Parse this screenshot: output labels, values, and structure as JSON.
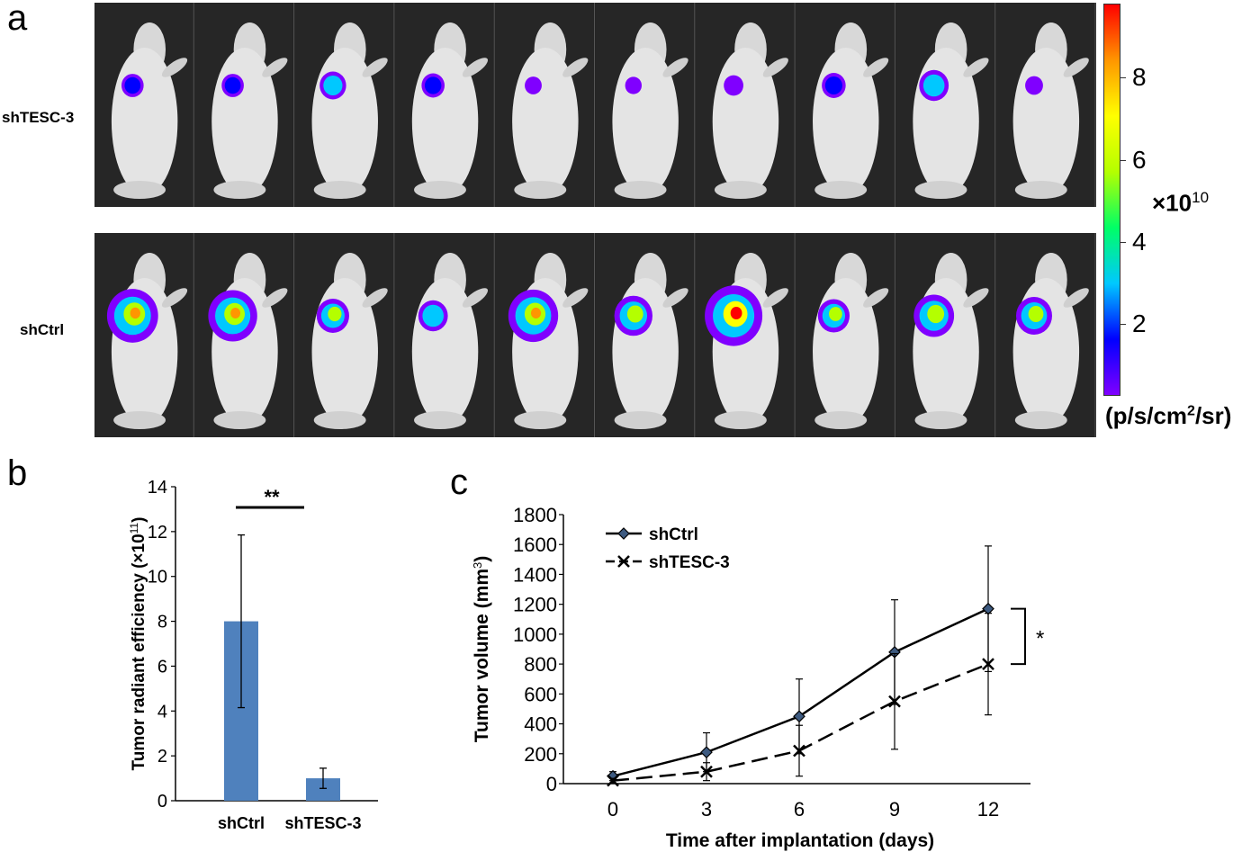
{
  "panel_a": {
    "letter": "a",
    "rows": [
      {
        "label": "shTESC-3",
        "signal": [
          0.18,
          0.18,
          0.28,
          0.2,
          0.06,
          0.05,
          0.12,
          0.22,
          0.35,
          0.08
        ]
      },
      {
        "label": "shCtrl",
        "signal": [
          0.85,
          0.8,
          0.42,
          0.35,
          0.82,
          0.55,
          1.0,
          0.4,
          0.6,
          0.5
        ]
      }
    ],
    "colorbar": {
      "ticks": [
        "2",
        "4",
        "6",
        "8"
      ],
      "tick_values": [
        2,
        4,
        6,
        8
      ],
      "min": 0.3,
      "max": 9.8,
      "exponent_base": "×10",
      "exponent_power": "10",
      "unit_prefix": "(p/s/cm",
      "unit_power": "2",
      "unit_suffix": "/sr)",
      "gradient": [
        "#8000ff",
        "#0000ff",
        "#00c8ff",
        "#00ff66",
        "#b4ff00",
        "#ffff00",
        "#ff9600",
        "#ff0000"
      ]
    }
  },
  "panel_b": {
    "letter": "b"
  },
  "panel_c": {
    "letter": "c"
  },
  "chart_data": [
    {
      "type": "bar",
      "ylabel_main": "Tumor radiant efficiency (×10",
      "ylabel_power": "11",
      "ylabel_end": ")",
      "categories": [
        "shCtrl",
        "shTESC-3"
      ],
      "values": [
        8.0,
        1.0
      ],
      "errors": [
        3.85,
        0.45
      ],
      "ylim": [
        0,
        14
      ],
      "yticks": [
        "0",
        "2",
        "4",
        "6",
        "8",
        "10",
        "12",
        "14"
      ],
      "significance": "**",
      "bar_color": "#4f81bd"
    },
    {
      "type": "line",
      "xlabel": "Time after implantation (days)",
      "ylabel_main": "Tumor volume (mm",
      "ylabel_power": "3",
      "ylabel_end": ")",
      "x": [
        0,
        3,
        6,
        9,
        12
      ],
      "xticks": [
        "0",
        "3",
        "6",
        "9",
        "12"
      ],
      "yticks": [
        "0",
        "200",
        "400",
        "600",
        "800",
        "1000",
        "1200",
        "1400",
        "1600",
        "1800"
      ],
      "ylim": [
        0,
        1800
      ],
      "significance": "*",
      "series": [
        {
          "name": "shCtrl",
          "values": [
            50,
            210,
            450,
            880,
            1170
          ],
          "errors": [
            30,
            130,
            250,
            350,
            420
          ],
          "marker": "diamond",
          "dash": "solid"
        },
        {
          "name": "shTESC-3",
          "values": [
            20,
            80,
            220,
            550,
            800
          ],
          "errors": [
            15,
            60,
            170,
            320,
            340
          ],
          "marker": "x",
          "dash": "dashed"
        }
      ]
    }
  ]
}
